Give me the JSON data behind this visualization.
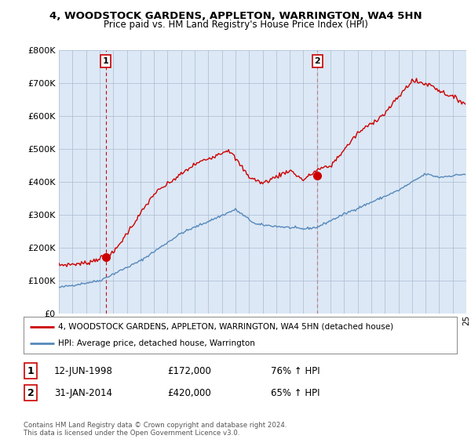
{
  "title_line1": "4, WOODSTOCK GARDENS, APPLETON, WARRINGTON, WA4 5HN",
  "title_line2": "Price paid vs. HM Land Registry's House Price Index (HPI)",
  "ylim": [
    0,
    800000
  ],
  "yticks": [
    0,
    100000,
    200000,
    300000,
    400000,
    500000,
    600000,
    700000,
    800000
  ],
  "ytick_labels": [
    "£0",
    "£100K",
    "£200K",
    "£300K",
    "£400K",
    "£500K",
    "£600K",
    "£700K",
    "£800K"
  ],
  "sale1_date": "12-JUN-1998",
  "sale1_price": 172000,
  "sale1_label": "£172,000",
  "sale1_pct": "76% ↑ HPI",
  "sale2_date": "31-JAN-2014",
  "sale2_price": 420000,
  "sale2_label": "£420,000",
  "sale2_pct": "65% ↑ HPI",
  "legend_line1": "4, WOODSTOCK GARDENS, APPLETON, WARRINGTON, WA4 5HN (detached house)",
  "legend_line2": "HPI: Average price, detached house, Warrington",
  "footer": "Contains HM Land Registry data © Crown copyright and database right 2024.\nThis data is licensed under the Open Government Licence v3.0.",
  "red_color": "#cc0000",
  "blue_color": "#5588bb",
  "chart_bg": "#dce8f5",
  "background_color": "#ffffff",
  "grid_color": "#aabbd0"
}
